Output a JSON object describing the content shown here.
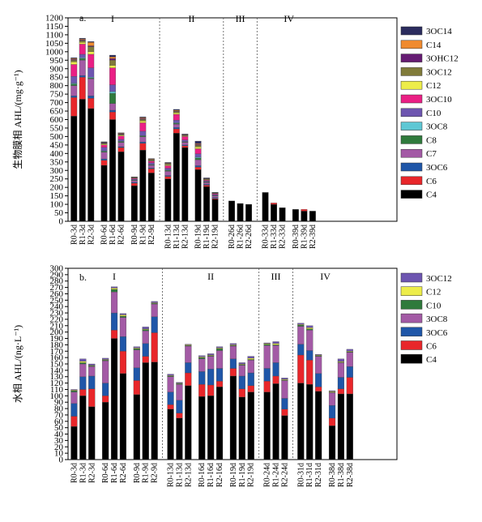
{
  "chart_data": [
    {
      "type": "bar",
      "stacked": true,
      "panel_label": "a.",
      "ylabel": "生物膜相 AHL/(mg·g⁻¹)",
      "ylim": [
        0,
        1200
      ],
      "yticks": [
        0,
        50,
        100,
        150,
        200,
        250,
        300,
        350,
        400,
        450,
        500,
        550,
        600,
        650,
        700,
        750,
        800,
        850,
        900,
        950,
        1000,
        1050,
        1100,
        1150,
        1200
      ],
      "phases": [
        {
          "label": "I",
          "categories": [
            "R0-3d",
            "R1-3d",
            "R2-3d",
            "R0-6d",
            "R1-6d",
            "R2-6d",
            "R0-9d",
            "R1-9d",
            "R2-9d"
          ]
        },
        {
          "label": "II",
          "categories": [
            "R0-13d",
            "R1-13d",
            "R2-13d",
            "R0-19d",
            "R1-19d",
            "R2-19d"
          ]
        },
        {
          "label": "III",
          "categories": [
            "R0-26d",
            "R1-26d",
            "R2-26d"
          ]
        },
        {
          "label": "IV",
          "categories": [
            "R0-33d",
            "R1-33d",
            "R2-33d",
            "R0-39d",
            "R1-39d",
            "R2-39d"
          ]
        }
      ],
      "series": [
        {
          "name": "C4",
          "color": "#000000",
          "values": [
            620,
            720,
            665,
            330,
            600,
            410,
            210,
            420,
            285,
            250,
            520,
            435,
            305,
            205,
            130,
            120,
            105,
            100,
            170,
            100,
            80,
            70,
            60,
            60
          ]
        },
        {
          "name": "C6",
          "color": "#e8262a",
          "values": [
            110,
            130,
            60,
            30,
            45,
            25,
            15,
            40,
            25,
            15,
            25,
            10,
            15,
            8,
            5,
            0,
            0,
            0,
            0,
            8,
            0,
            0,
            10,
            0
          ]
        },
        {
          "name": "3OC6",
          "color": "#1f56a8",
          "values": [
            10,
            10,
            15,
            8,
            10,
            5,
            5,
            8,
            5,
            5,
            8,
            5,
            8,
            5,
            5,
            0,
            0,
            0,
            0,
            0,
            0,
            0,
            0,
            0
          ]
        },
        {
          "name": "C7",
          "color": "#a35aa5",
          "values": [
            60,
            90,
            100,
            40,
            40,
            25,
            10,
            30,
            15,
            25,
            20,
            15,
            35,
            10,
            10,
            0,
            0,
            0,
            0,
            0,
            0,
            0,
            0,
            0
          ]
        },
        {
          "name": "C8",
          "color": "#2f7a3c",
          "values": [
            10,
            10,
            5,
            5,
            60,
            5,
            3,
            5,
            3,
            5,
            5,
            3,
            10,
            3,
            2,
            0,
            0,
            0,
            0,
            0,
            0,
            0,
            0,
            0
          ]
        },
        {
          "name": "3OC8",
          "color": "#5ec7d4",
          "values": [
            5,
            5,
            5,
            3,
            10,
            3,
            2,
            3,
            2,
            3,
            3,
            2,
            5,
            2,
            1,
            0,
            0,
            0,
            0,
            0,
            0,
            0,
            0,
            0
          ]
        },
        {
          "name": "C10",
          "color": "#6d55b0",
          "values": [
            40,
            20,
            55,
            20,
            40,
            10,
            5,
            25,
            10,
            10,
            15,
            10,
            20,
            5,
            5,
            0,
            0,
            0,
            0,
            0,
            0,
            0,
            0,
            0
          ]
        },
        {
          "name": "3OC10",
          "color": "#ea1f85",
          "values": [
            70,
            60,
            80,
            15,
            100,
            20,
            5,
            50,
            10,
            15,
            35,
            20,
            30,
            5,
            5,
            0,
            0,
            0,
            0,
            0,
            0,
            0,
            0,
            0
          ]
        },
        {
          "name": "C12",
          "color": "#eded4a",
          "values": [
            15,
            10,
            15,
            5,
            15,
            5,
            2,
            10,
            3,
            5,
            8,
            3,
            10,
            3,
            2,
            0,
            0,
            0,
            0,
            0,
            0,
            0,
            0,
            0
          ]
        },
        {
          "name": "3OC12",
          "color": "#807b3a",
          "values": [
            10,
            10,
            30,
            5,
            30,
            5,
            2,
            10,
            5,
            5,
            8,
            5,
            10,
            3,
            2,
            0,
            0,
            0,
            0,
            0,
            0,
            0,
            0,
            0
          ]
        },
        {
          "name": "3OHC12",
          "color": "#651b72",
          "values": [
            5,
            5,
            5,
            3,
            10,
            3,
            1,
            5,
            2,
            3,
            3,
            2,
            5,
            2,
            1,
            0,
            0,
            0,
            0,
            0,
            0,
            0,
            0,
            0
          ]
        },
        {
          "name": "C14",
          "color": "#f08a2e",
          "values": [
            5,
            5,
            20,
            2,
            10,
            3,
            1,
            5,
            3,
            3,
            5,
            2,
            5,
            2,
            1,
            0,
            0,
            0,
            0,
            0,
            0,
            0,
            0,
            0
          ]
        },
        {
          "name": "3OC14",
          "color": "#2b2c5e",
          "values": [
            5,
            5,
            5,
            3,
            10,
            3,
            1,
            5,
            2,
            3,
            5,
            3,
            15,
            3,
            2,
            0,
            0,
            0,
            0,
            0,
            0,
            0,
            0,
            0
          ]
        }
      ]
    },
    {
      "type": "bar",
      "stacked": true,
      "panel_label": "b.",
      "ylabel": "水相 AHL/(ng·L⁻¹)",
      "ylim": [
        0,
        300
      ],
      "yticks": [
        0,
        10,
        20,
        30,
        40,
        50,
        60,
        70,
        80,
        90,
        100,
        110,
        120,
        130,
        140,
        150,
        160,
        170,
        180,
        190,
        200,
        210,
        220,
        230,
        240,
        250,
        260,
        270,
        280,
        290,
        300
      ],
      "phases": [
        {
          "label": "I",
          "categories": [
            "R0-3d",
            "R1-3d",
            "R2-3d",
            "R0-6d",
            "R1-6d",
            "R2-6d",
            "R0-9d",
            "R1-9d",
            "R2-9d"
          ]
        },
        {
          "label": "II",
          "categories": [
            "R0-13d",
            "R1-13d",
            "R2-13d",
            "R0-16d",
            "R1-16d",
            "R2-16d",
            "R0-19d",
            "R1-19d",
            "R2-19d"
          ]
        },
        {
          "label": "III",
          "categories": [
            "R0-24d",
            "R1-24d",
            "R2-24d"
          ]
        },
        {
          "label": "IV",
          "categories": [
            "R0-31d",
            "R1-31d",
            "R2-31d",
            "R0-38d",
            "R1-38d",
            "R2-38d"
          ]
        }
      ],
      "series": [
        {
          "name": "C4",
          "color": "#000000",
          "values": [
            52,
            100,
            83,
            90,
            190,
            135,
            102,
            152,
            153,
            79,
            65,
            116,
            99,
            100,
            114,
            131,
            98,
            106,
            106,
            119,
            69,
            120,
            118,
            107,
            53,
            103,
            103
          ]
        },
        {
          "name": "C6",
          "color": "#e8262a",
          "values": [
            16,
            10,
            28,
            10,
            13,
            35,
            22,
            10,
            46,
            7,
            8,
            20,
            19,
            17,
            9,
            12,
            13,
            10,
            17,
            12,
            10,
            44,
            38,
            7,
            12,
            8,
            26
          ]
        },
        {
          "name": "3OC6",
          "color": "#1f56a8",
          "values": [
            20,
            20,
            20,
            20,
            27,
            23,
            20,
            20,
            25,
            20,
            20,
            16,
            20,
            25,
            20,
            15,
            20,
            20,
            20,
            21,
            17,
            17,
            15,
            21,
            20,
            18,
            17
          ]
        },
        {
          "name": "3OC8",
          "color": "#a35aa5",
          "values": [
            18,
            20,
            15,
            35,
            33,
            30,
            28,
            20,
            20,
            24,
            25,
            26,
            20,
            20,
            28,
            20,
            17,
            20,
            36,
            27,
            28,
            28,
            32,
            27,
            20,
            23,
            22
          ]
        },
        {
          "name": "C10",
          "color": "#2f7a3c",
          "values": [
            2,
            2,
            1,
            1,
            4,
            2,
            2,
            2,
            1,
            1,
            1,
            1,
            2,
            1,
            3,
            1,
            1,
            1,
            2,
            1,
            1,
            2,
            2,
            1,
            1,
            1,
            1
          ]
        },
        {
          "name": "C12",
          "color": "#eded4a",
          "values": [
            1,
            2,
            1,
            1,
            2,
            2,
            1,
            1,
            1,
            1,
            1,
            1,
            1,
            1,
            1,
            1,
            1,
            2,
            1,
            2,
            1,
            1,
            2,
            1,
            1,
            1,
            1
          ]
        },
        {
          "name": "3OC12",
          "color": "#6d55b0",
          "values": [
            1,
            4,
            2,
            2,
            2,
            2,
            2,
            3,
            2,
            2,
            1,
            1,
            2,
            2,
            2,
            2,
            2,
            3,
            1,
            3,
            2,
            2,
            3,
            1,
            1,
            4,
            3
          ]
        }
      ]
    }
  ]
}
